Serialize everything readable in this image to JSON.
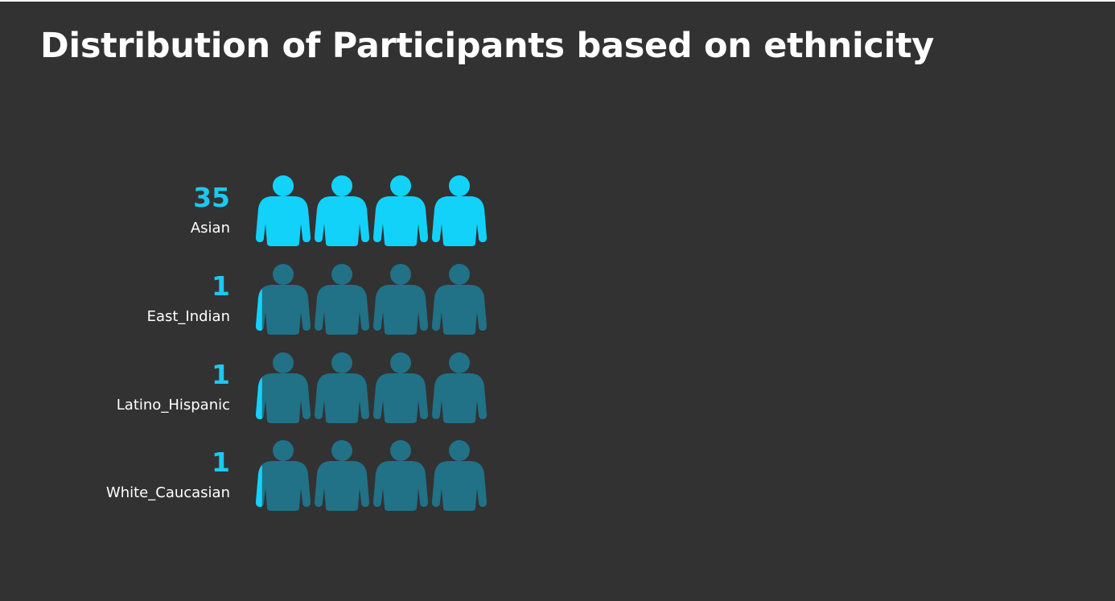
{
  "chart_data": {
    "type": "pictograph",
    "title": "Distribution of Participants based on ethnicity",
    "categories": [
      "Asian",
      "East_Indian",
      "Latino_Hispanic",
      "White_Caucasian"
    ],
    "values": [
      35,
      1,
      1,
      1
    ],
    "max_icons": 4,
    "icon": "person-icon",
    "colors": {
      "filled": "#12d2fa",
      "unfilled": "#217187",
      "value_text": "#1ec8f0",
      "label_text": "#ffffff",
      "background": "#323232"
    }
  }
}
